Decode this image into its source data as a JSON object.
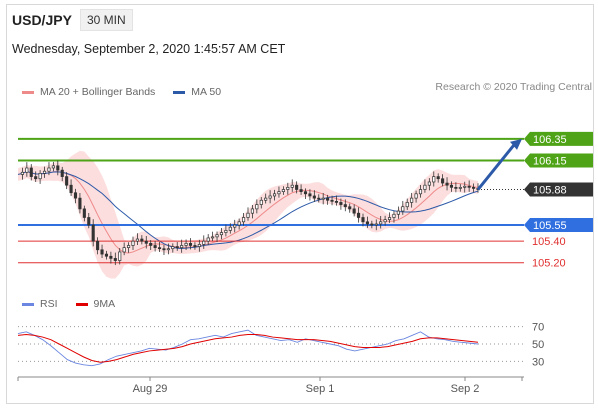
{
  "header": {
    "pair": "USD/JPY",
    "timeframe": "30 MIN",
    "datetime": "Wednesday, September 2, 2020 1:45:57 AM CET"
  },
  "legend_main": [
    {
      "label": "MA 20 + Bollinger Bands",
      "color": "#ef8a8a"
    },
    {
      "label": "MA 50",
      "color": "#2d5aa8"
    }
  ],
  "legend_rsi": [
    {
      "label": "RSI",
      "color": "#6a86e0"
    },
    {
      "label": "9MA",
      "color": "#e00000"
    }
  ],
  "credit": "Research © 2020 Trading Central",
  "chart_data": [
    {
      "type": "candlestick",
      "x_labels": [
        "Aug 29",
        "Sep 1",
        "Sep 2"
      ],
      "ylim": [
        104.9,
        106.6
      ],
      "levels": [
        {
          "value": 106.35,
          "label": "106.35",
          "kind": "resistance",
          "color": "#4ea317"
        },
        {
          "value": 106.15,
          "label": "106.15",
          "kind": "resistance",
          "color": "#4ea317"
        },
        {
          "value": 105.88,
          "label": "105.88",
          "kind": "last",
          "color": "#333333"
        },
        {
          "value": 105.55,
          "label": "105.55",
          "kind": "support",
          "color": "#2f6fe0"
        },
        {
          "value": 105.4,
          "label": "105.40",
          "kind": "support-minor",
          "color": "#e03030"
        },
        {
          "value": 105.2,
          "label": "105.20",
          "kind": "support-minor",
          "color": "#e03030"
        }
      ],
      "close_path": [
        106.02,
        106.04,
        106.08,
        106.0,
        105.98,
        106.03,
        106.05,
        106.08,
        106.1,
        106.06,
        106.0,
        105.92,
        105.85,
        105.8,
        105.7,
        105.62,
        105.55,
        105.4,
        105.32,
        105.28,
        105.26,
        105.24,
        105.22,
        105.3,
        105.34,
        105.36,
        105.4,
        105.42,
        105.4,
        105.38,
        105.36,
        105.34,
        105.33,
        105.32,
        105.33,
        105.35,
        105.34,
        105.36,
        105.38,
        105.36,
        105.35,
        105.37,
        105.4,
        105.43,
        105.44,
        105.46,
        105.48,
        105.5,
        105.53,
        105.55,
        105.58,
        105.62,
        105.66,
        105.7,
        105.74,
        105.78,
        105.8,
        105.82,
        105.84,
        105.86,
        105.88,
        105.9,
        105.92,
        105.88,
        105.86,
        105.84,
        105.82,
        105.8,
        105.79,
        105.8,
        105.78,
        105.77,
        105.76,
        105.74,
        105.72,
        105.7,
        105.66,
        105.62,
        105.58,
        105.56,
        105.55,
        105.56,
        105.58,
        105.6,
        105.62,
        105.65,
        105.68,
        105.72,
        105.76,
        105.8,
        105.84,
        105.88,
        105.92,
        105.95,
        106.0,
        105.98,
        105.94,
        105.92,
        105.9,
        105.89,
        105.9,
        105.91,
        105.9,
        105.89,
        105.88
      ],
      "xlabel": "",
      "ylabel": ""
    },
    {
      "type": "line",
      "name": "rsi-panel",
      "ylim": [
        20,
        80
      ],
      "ticks": [
        70,
        50,
        30
      ],
      "series": [
        {
          "name": "RSI",
          "color": "#6a86e0",
          "values": [
            62,
            64,
            60,
            55,
            48,
            40,
            32,
            28,
            26,
            25,
            27,
            32,
            36,
            38,
            40,
            42,
            45,
            44,
            43,
            46,
            50,
            55,
            56,
            58,
            60,
            58,
            62,
            64,
            66,
            60,
            58,
            56,
            54,
            55,
            52,
            56,
            54,
            52,
            50,
            48,
            44,
            42,
            44,
            46,
            48,
            50,
            54,
            56,
            60,
            64,
            58,
            56,
            55,
            53,
            52,
            51,
            50
          ]
        },
        {
          "name": "9MA",
          "color": "#e00000",
          "values": [
            60,
            61,
            60,
            58,
            55,
            50,
            45,
            40,
            35,
            31,
            29,
            30,
            32,
            35,
            38,
            40,
            42,
            43,
            44,
            45,
            47,
            50,
            52,
            54,
            56,
            57,
            58,
            60,
            61,
            61,
            60,
            58,
            57,
            56,
            55,
            55,
            55,
            54,
            53,
            51,
            49,
            47,
            46,
            46,
            46,
            47,
            49,
            51,
            53,
            56,
            57,
            57,
            56,
            55,
            54,
            53,
            52
          ]
        }
      ]
    }
  ]
}
